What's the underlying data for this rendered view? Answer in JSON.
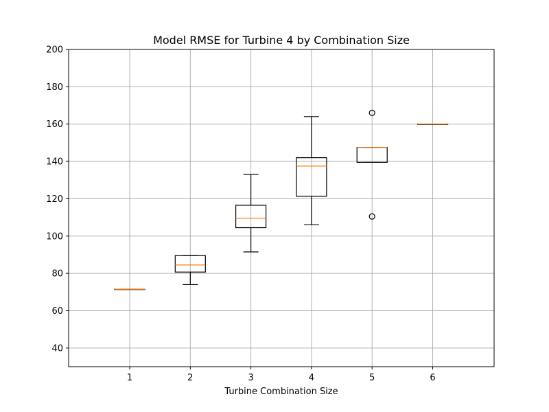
{
  "chart_data": {
    "type": "boxplot",
    "title": "Model RMSE for Turbine 4 by Combination Size",
    "xlabel": "Turbine Combination Size",
    "ylabel": "",
    "categories": [
      "1",
      "2",
      "3",
      "4",
      "5",
      "6"
    ],
    "ylim": [
      30,
      200
    ],
    "yticks": [
      40,
      60,
      80,
      100,
      120,
      140,
      160,
      180,
      200
    ],
    "grid": true,
    "boxes": [
      {
        "category": "1",
        "whisker_low": 71.5,
        "q1": 71.5,
        "median": 71.5,
        "q3": 71.5,
        "whisker_high": 71.5,
        "fliers": []
      },
      {
        "category": "2",
        "whisker_low": 74,
        "q1": 80.7,
        "median": 84.5,
        "q3": 89.5,
        "whisker_high": 89.5,
        "fliers": []
      },
      {
        "category": "3",
        "whisker_low": 91.5,
        "q1": 104.5,
        "median": 109.5,
        "q3": 116.5,
        "whisker_high": 133,
        "fliers": []
      },
      {
        "category": "4",
        "whisker_low": 106,
        "q1": 121.3,
        "median": 137.5,
        "q3": 142,
        "whisker_high": 164,
        "fliers": []
      },
      {
        "category": "5",
        "whisker_low": 139.5,
        "q1": 139.5,
        "median": 147.5,
        "q3": 147.5,
        "whisker_high": 147.5,
        "fliers": [
          110.5,
          166
        ]
      },
      {
        "category": "6",
        "whisker_low": 160,
        "q1": 160,
        "median": 160,
        "q3": 160,
        "whisker_high": 160,
        "fliers": []
      }
    ],
    "colors": {
      "median": "#ff7f0e",
      "box": "#000000",
      "grid": "#b0b0b0"
    }
  }
}
